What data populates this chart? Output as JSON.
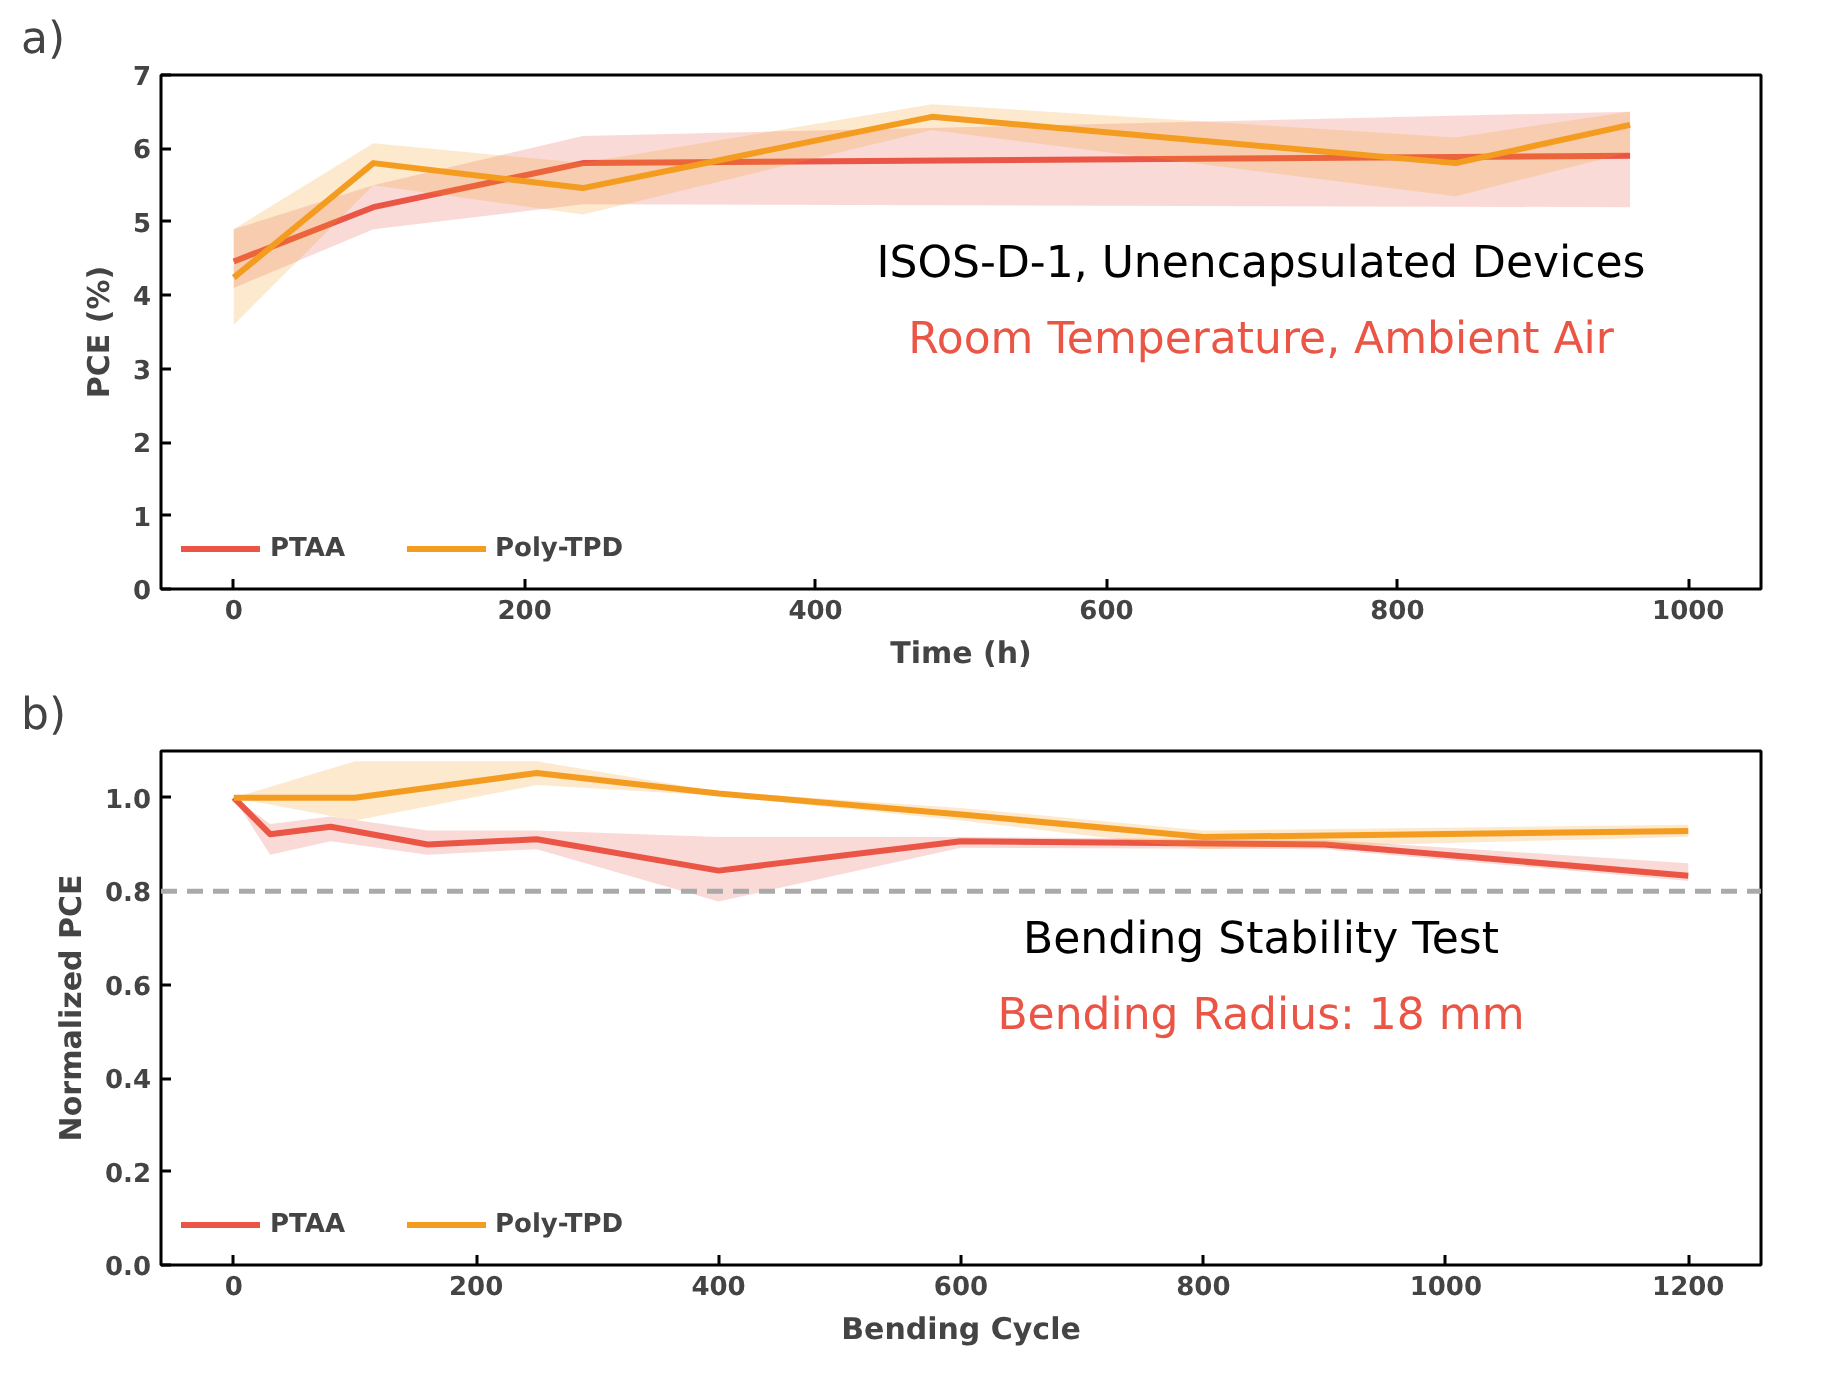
{
  "chart_data": [
    {
      "type": "line",
      "title": "a)",
      "xlabel": "Time (h)",
      "ylabel": "PCE (%)",
      "xlim": [
        -50,
        1050
      ],
      "xticks": [
        0,
        200,
        400,
        600,
        800,
        1000
      ],
      "ylim": [
        0,
        7
      ],
      "yticks": [
        0,
        1,
        2,
        3,
        4,
        5,
        6,
        7
      ],
      "grid": false,
      "legend": "bottom left",
      "annotations": [
        "ISOS-D-1, Unencapsulated Devices",
        "Room Temperature, Ambient Air"
      ],
      "series": [
        {
          "name": "PTAA",
          "color": "#ea5545",
          "x": [
            0,
            96,
            240,
            960
          ],
          "values": [
            4.46,
            5.2,
            5.8,
            5.9
          ],
          "lower": [
            4.1,
            4.9,
            5.24,
            5.2
          ],
          "upper": [
            4.9,
            5.5,
            6.17,
            6.5
          ]
        },
        {
          "name": "Poly-TPD",
          "color": "#f39c1f",
          "x": [
            0,
            96,
            240,
            480,
            840,
            960
          ],
          "values": [
            4.24,
            5.8,
            5.46,
            6.43,
            5.8,
            6.32
          ],
          "lower": [
            3.6,
            5.5,
            5.1,
            6.25,
            5.35,
            5.95
          ],
          "upper": [
            4.9,
            6.07,
            5.8,
            6.6,
            6.15,
            6.5
          ]
        }
      ]
    },
    {
      "type": "line",
      "title": "b)",
      "xlabel": "Bending Cycle",
      "ylabel": "Normalized PCE",
      "xlim": [
        -60,
        1260
      ],
      "xticks": [
        0,
        200,
        400,
        600,
        800,
        1000,
        1200
      ],
      "ylim": [
        0,
        1.1
      ],
      "yticks": [
        {
          "value": 0,
          "label": "0.0"
        },
        0.2,
        0.4,
        0.6,
        0.8,
        {
          "value": 1,
          "label": "1.0"
        }
      ],
      "grid": false,
      "legend": "bottom left",
      "annotations": [
        "Bending Stability Test",
        "Bending Radius: 18 mm"
      ],
      "ref_lines": [
        {
          "axis": "y",
          "value": 0.8,
          "label": null,
          "color": "#aaaaaa",
          "line_style": "dashed"
        }
      ],
      "series": [
        {
          "name": "PTAA",
          "color": "#ea5545",
          "x": [
            0,
            30,
            80,
            160,
            250,
            400,
            600,
            900,
            1200
          ],
          "values": [
            1.0,
            0.922,
            0.938,
            0.9,
            0.911,
            0.844,
            0.907,
            0.9,
            0.833
          ],
          "lower": [
            1.0,
            0.878,
            0.907,
            0.878,
            0.89,
            0.778,
            0.893,
            0.89,
            0.822
          ],
          "upper": [
            1.0,
            0.944,
            0.96,
            0.93,
            0.93,
            0.916,
            0.916,
            0.91,
            0.86
          ]
        },
        {
          "name": "Poly-TPD",
          "color": "#f39c1f",
          "x": [
            0,
            100,
            250,
            400,
            600,
            800,
            1200
          ],
          "values": [
            1.0,
            1.0,
            1.053,
            1.009,
            0.964,
            0.916,
            0.929
          ],
          "lower": [
            1.0,
            0.951,
            1.027,
            1.004,
            0.951,
            0.89,
            0.916
          ],
          "upper": [
            1.0,
            1.078,
            1.078,
            1.013,
            0.978,
            0.93,
            0.942
          ]
        }
      ]
    }
  ]
}
